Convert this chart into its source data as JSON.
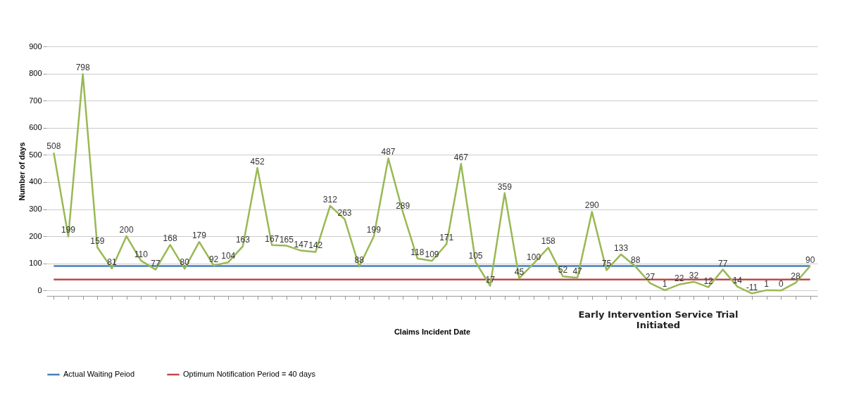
{
  "chart_data": {
    "type": "line",
    "xlabel": "Claims Incident Date",
    "ylabel": "Number of days",
    "categories": [
      null,
      null,
      null,
      null,
      null,
      null,
      null,
      null,
      null,
      null,
      null,
      null,
      null,
      null,
      null,
      null,
      null,
      null,
      null,
      null,
      null,
      null,
      null,
      null,
      null,
      null,
      null,
      null,
      null,
      null,
      null,
      null,
      null,
      null,
      null,
      null,
      null,
      null,
      null,
      null,
      null,
      null,
      null,
      null,
      null,
      null,
      null,
      null,
      null,
      null,
      null,
      null,
      null
    ],
    "ylim": [
      -20,
      900
    ],
    "yticks": [
      0,
      100,
      200,
      300,
      400,
      500,
      600,
      700,
      800,
      900
    ],
    "grid": "y",
    "legend": "bottom",
    "marker": "none",
    "line_style": "solid",
    "series": [
      {
        "name": "Actual Waiting Peiod",
        "color": "#4a7ebb",
        "values": [
          90,
          90,
          90,
          90,
          90,
          90,
          90,
          90,
          90,
          90,
          90,
          90,
          90,
          90,
          90,
          90,
          90,
          90,
          90,
          90,
          90,
          90,
          90,
          90,
          90,
          90,
          90,
          90,
          90,
          90,
          90,
          90,
          90,
          90,
          90,
          90,
          90,
          90,
          90,
          90,
          90,
          90,
          90,
          90,
          90,
          90,
          90,
          90,
          90,
          90,
          90,
          90,
          90
        ]
      },
      {
        "name": "Optimum Notification Period = 40 days",
        "color": "#be4b48",
        "values": [
          40,
          40,
          40,
          40,
          40,
          40,
          40,
          40,
          40,
          40,
          40,
          40,
          40,
          40,
          40,
          40,
          40,
          40,
          40,
          40,
          40,
          40,
          40,
          40,
          40,
          40,
          40,
          40,
          40,
          40,
          40,
          40,
          40,
          40,
          40,
          40,
          40,
          40,
          40,
          40,
          40,
          40,
          40,
          40,
          40,
          40,
          40,
          40,
          40,
          40,
          40,
          40,
          40
        ]
      },
      {
        "color": "#98b954",
        "values": [
          508,
          199,
          798,
          159,
          81,
          200,
          110,
          77,
          168,
          80,
          179,
          92,
          104,
          163,
          452,
          167,
          165,
          147,
          142,
          312,
          263,
          88,
          199,
          487,
          289,
          118,
          109,
          171,
          467,
          105,
          17,
          359,
          45,
          100,
          158,
          52,
          47,
          290,
          75,
          133,
          88,
          27,
          1,
          22,
          32,
          12,
          77,
          14,
          -11,
          1,
          0,
          28,
          90
        ],
        "value_labels": [
          "508",
          "199",
          "798",
          "159",
          "81",
          "200",
          "110",
          "77",
          "168",
          "80",
          "179",
          "92",
          "104",
          "163",
          "452",
          "167",
          "165",
          "147",
          "142",
          "312",
          "263",
          "88",
          "199",
          "487",
          "289",
          "118",
          "109",
          "171",
          "467",
          "105",
          "17",
          "359",
          "45",
          "100",
          "158",
          "52",
          "47",
          "290",
          "75",
          "133",
          "88",
          "27",
          "1",
          "22",
          "32",
          "12",
          "77",
          "14",
          "-11",
          "1",
          "0",
          "28",
          "90"
        ]
      }
    ],
    "annotations": [
      "Early Intervention Service Trial Initiated"
    ]
  }
}
